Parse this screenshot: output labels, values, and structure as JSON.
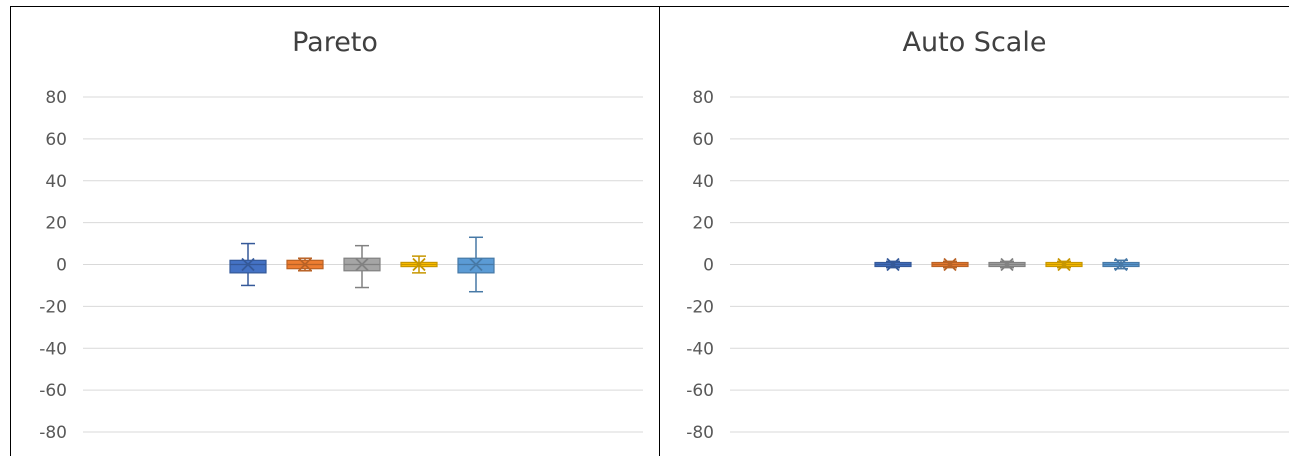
{
  "chart_data": [
    {
      "type": "box",
      "title": "Pareto",
      "ylim": [
        -80,
        80
      ],
      "ytick_labels": [
        "80",
        "60",
        "40",
        "20",
        "0",
        "-20",
        "-40",
        "-60",
        "-80"
      ],
      "grid": true,
      "boxes": [
        {
          "color": "#4472C4",
          "min": -10,
          "q1": -4,
          "median": 0,
          "q3": 2,
          "max": 10,
          "mean": 0
        },
        {
          "color": "#ED7D31",
          "min": -3,
          "q1": -2,
          "median": 0,
          "q3": 2,
          "max": 3,
          "mean": 0
        },
        {
          "color": "#A5A5A5",
          "min": -11,
          "q1": -3,
          "median": 0,
          "q3": 3,
          "max": 9,
          "mean": 0
        },
        {
          "color": "#FFC000",
          "min": -4,
          "q1": -1,
          "median": 0,
          "q3": 1,
          "max": 4,
          "mean": 0
        },
        {
          "color": "#5B9BD5",
          "min": -13,
          "q1": -4,
          "median": 0,
          "q3": 3,
          "max": 13,
          "mean": 0
        }
      ]
    },
    {
      "type": "box",
      "title": "Auto Scale",
      "ylim": [
        -80,
        80
      ],
      "ytick_labels": [
        "80",
        "60",
        "40",
        "20",
        "0",
        "-20",
        "-40",
        "-60",
        "-80"
      ],
      "grid": true,
      "boxes": [
        {
          "color": "#4472C4",
          "min": -1.5,
          "q1": -0.5,
          "median": 0,
          "q3": 0.5,
          "max": 1.5,
          "mean": 0
        },
        {
          "color": "#ED7D31",
          "min": -1.5,
          "q1": -0.5,
          "median": 0,
          "q3": 0.5,
          "max": 1.5,
          "mean": 0
        },
        {
          "color": "#A5A5A5",
          "min": -1.5,
          "q1": -0.5,
          "median": 0,
          "q3": 0.5,
          "max": 1.5,
          "mean": 0
        },
        {
          "color": "#FFC000",
          "min": -1.5,
          "q1": -0.5,
          "median": 0,
          "q3": 0.5,
          "max": 1.5,
          "mean": 0
        },
        {
          "color": "#5B9BD5",
          "min": -2,
          "q1": -0.5,
          "median": 0,
          "q3": 0.5,
          "max": 2,
          "mean": 0
        }
      ]
    }
  ]
}
